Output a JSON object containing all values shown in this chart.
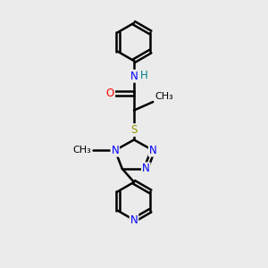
{
  "bg_color": "#ebebeb",
  "bond_color": "#000000",
  "bond_width": 1.8,
  "atom_colors": {
    "N": "#0000ff",
    "O": "#ff0000",
    "S": "#999900",
    "H": "#008080",
    "C": "#000000"
  },
  "font_size": 8.5,
  "figsize": [
    3.0,
    3.0
  ],
  "dpi": 100
}
